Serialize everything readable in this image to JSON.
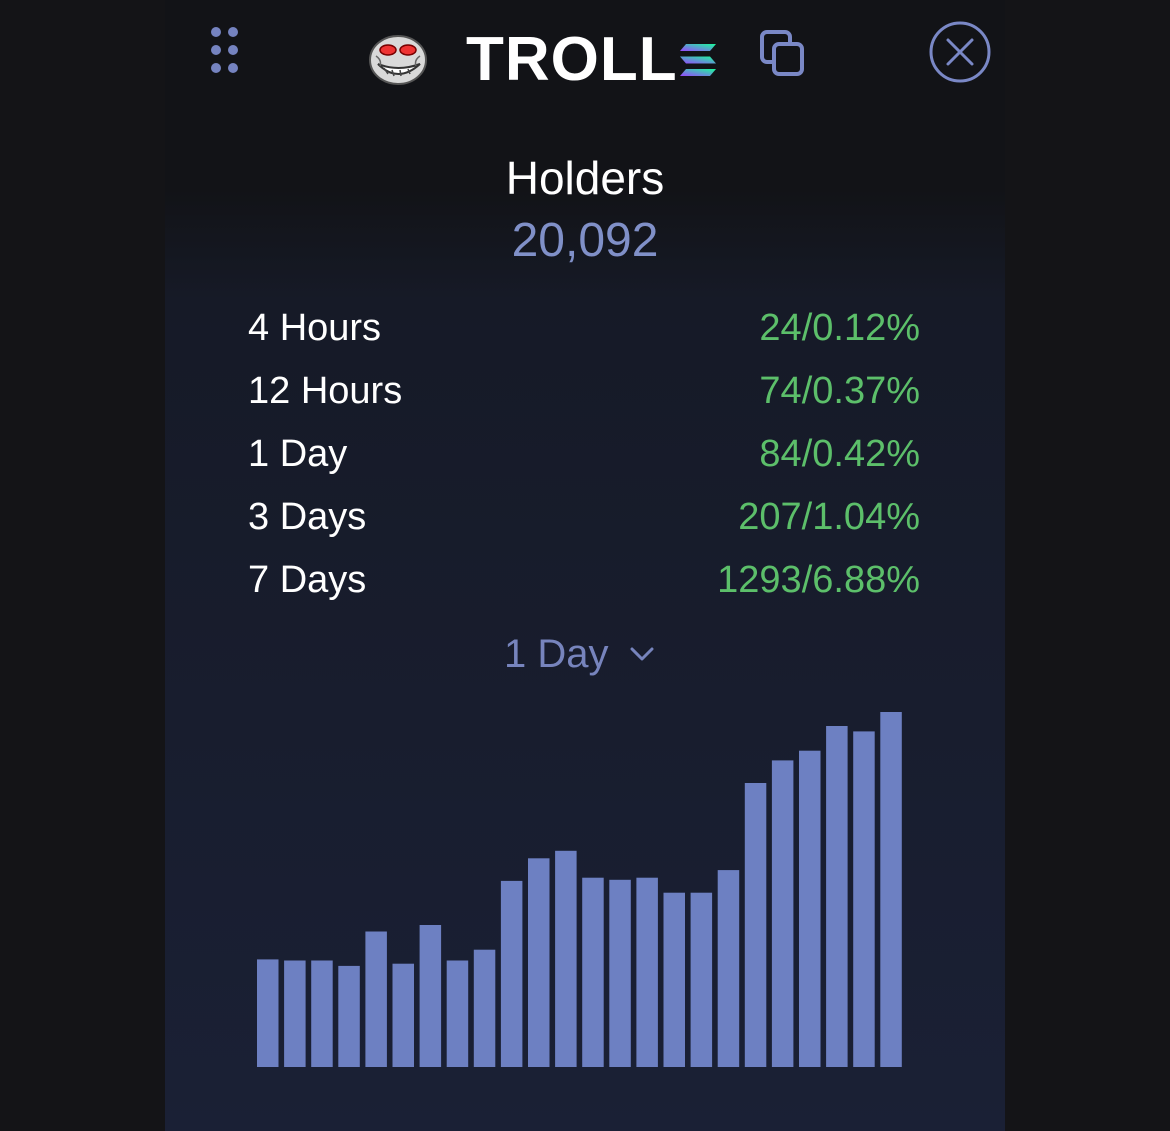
{
  "header": {
    "token_name": "TROLL",
    "icons": {
      "drag": "drag-handle-icon",
      "avatar": "troll-face-icon",
      "chain": "solana-icon",
      "copy": "copy-icon",
      "close": "close-icon"
    }
  },
  "holders": {
    "title": "Holders",
    "count": "20,092"
  },
  "stats": [
    {
      "label": "4 Hours",
      "value": "24/0.12%"
    },
    {
      "label": "12 Hours",
      "value": "74/0.37%"
    },
    {
      "label": "1 Day",
      "value": "84/0.42%"
    },
    {
      "label": "3 Days",
      "value": "207/1.04%"
    },
    {
      "label": "7 Days",
      "value": "1293/6.88%"
    }
  ],
  "period_select": {
    "selected": "1 Day"
  },
  "colors": {
    "positive": "#5cbf6a",
    "accent": "#8090c8",
    "bar": "#6d80c2"
  },
  "chart_data": {
    "type": "bar",
    "values": [
      100,
      99,
      99,
      94,
      126,
      96,
      132,
      99,
      109,
      173,
      194,
      201,
      176,
      174,
      176,
      162,
      162,
      183,
      264,
      285,
      294,
      317,
      312,
      330
    ],
    "ylim": [
      0,
      330
    ]
  }
}
